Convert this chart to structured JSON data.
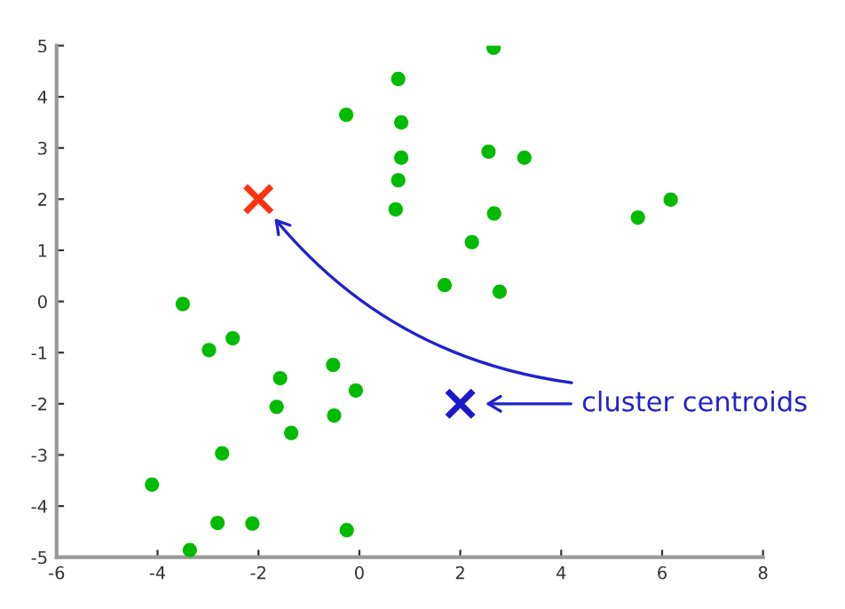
{
  "chart_data": {
    "type": "scatter",
    "xlim": [
      -6,
      8
    ],
    "ylim": [
      -5,
      5
    ],
    "xticks": [
      -6,
      -4,
      -2,
      0,
      2,
      4,
      6,
      8
    ],
    "yticks": [
      -5,
      -4,
      -3,
      -2,
      -1,
      0,
      1,
      2,
      3,
      4,
      5
    ],
    "grid": false,
    "legend": false,
    "series": [
      {
        "color": "#00bb00",
        "marker": "circle",
        "x": [
          -3.5,
          -2.98,
          -2.51,
          -1.57,
          -0.52,
          -1.64,
          -0.07,
          -0.5,
          -1.35,
          -2.72,
          -4.11,
          -2.81,
          -2.12,
          -0.25,
          -3.36,
          2.66,
          0.77,
          -0.26,
          0.83,
          0.83,
          2.56,
          3.27,
          0.77,
          0.72,
          2.67,
          6.17,
          5.52,
          2.23,
          1.69,
          2.78
        ],
        "values": [
          -0.05,
          -0.95,
          -0.72,
          -1.5,
          -1.24,
          -2.06,
          -1.74,
          -2.23,
          -2.57,
          -2.97,
          -3.58,
          -4.33,
          -4.34,
          -4.47,
          -4.86,
          4.96,
          4.35,
          3.65,
          3.5,
          2.81,
          2.93,
          2.81,
          2.37,
          1.8,
          1.72,
          1.99,
          1.64,
          1.16,
          0.32,
          0.19
        ]
      },
      {
        "color": "#ff3311",
        "marker": "cross",
        "x": [
          -2
        ],
        "values": [
          2
        ]
      },
      {
        "color": "#1a1acc",
        "marker": "cross",
        "x": [
          2
        ],
        "values": [
          -2
        ]
      }
    ],
    "annotations": [
      "cluster centroids"
    ]
  }
}
